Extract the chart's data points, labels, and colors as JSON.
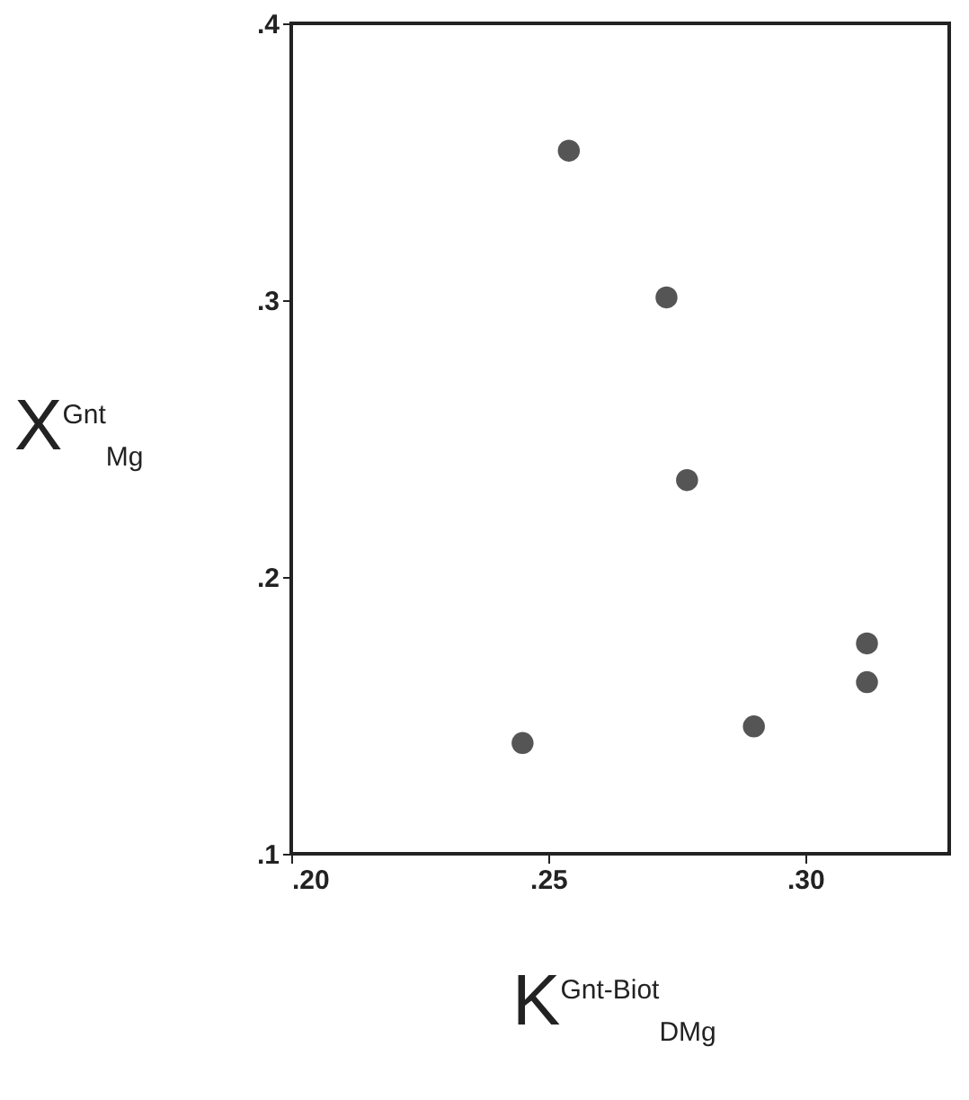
{
  "chart_data": {
    "type": "scatter",
    "xlabel": "K$^{Gnt-Biot}$$_{DMg}$",
    "ylabel": "X$^{Gnt}$$_{Mg}$",
    "x": [
      0.254,
      0.273,
      0.277,
      0.312,
      0.312,
      0.29,
      0.245
    ],
    "series": [
      {
        "color": "#555555",
        "values": [
          0.354,
          0.301,
          0.235,
          0.176,
          0.162,
          0.146,
          0.14
        ]
      }
    ],
    "xlim": [
      0.2,
      0.328
    ],
    "ylim": [
      0.1,
      0.4
    ],
    "xticks": [
      {
        "value": 0.2,
        "label": ".20"
      },
      {
        "value": 0.25,
        "label": ".25"
      },
      {
        "value": 0.3,
        "label": ".30"
      }
    ],
    "yticks": [
      {
        "value": 0.1,
        "label": ".1"
      },
      {
        "value": 0.2,
        "label": ".2"
      },
      {
        "value": 0.3,
        "label": ".3"
      },
      {
        "value": 0.4,
        "label": ".4"
      }
    ],
    "marker": "circle",
    "grid": false
  }
}
